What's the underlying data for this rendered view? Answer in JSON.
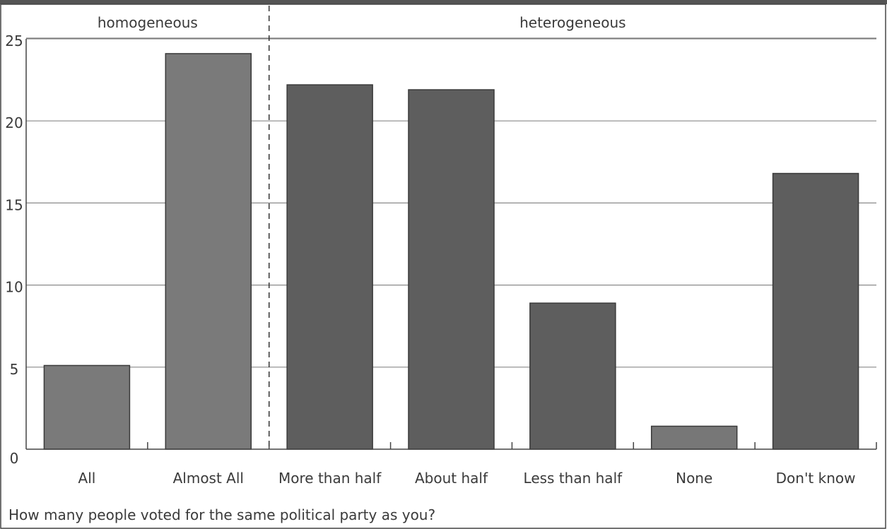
{
  "chart_data": {
    "type": "bar",
    "categories": [
      "All",
      "Almost All",
      "More than half",
      "About half",
      "Less than half",
      "None",
      "Don't know"
    ],
    "values": [
      5.1,
      24.1,
      22.2,
      21.9,
      8.9,
      1.4,
      16.8
    ],
    "groups": [
      {
        "label": "homogeneous",
        "categories": [
          "All",
          "Almost All"
        ],
        "color": "#7b7b7b"
      },
      {
        "label": "heterogeneous",
        "categories": [
          "More than half",
          "About half",
          "Less than half",
          "None",
          "Don't know"
        ],
        "color": "#5e5e5e"
      }
    ],
    "bar_colors": [
      "#7a7a7a",
      "#7a7a7a",
      "#5e5e5e",
      "#5e5e5e",
      "#5e5e5e",
      "#777777",
      "#5e5e5e"
    ],
    "yticks": [
      0,
      5,
      10,
      15,
      20,
      25
    ],
    "ylim": [
      0,
      25
    ],
    "grid": true,
    "xlabel": "How many people voted for the same political party as you?",
    "ylabel": ""
  }
}
